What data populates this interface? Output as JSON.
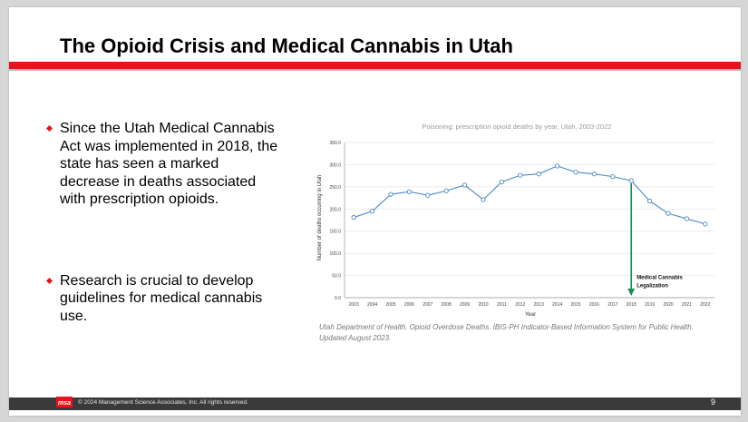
{
  "slide": {
    "title": "The Opioid Crisis and Medical Cannabis in Utah",
    "bullets": [
      "Since the Utah Medical Cannabis Act was implemented in 2018, the state has seen a marked decrease in deaths associated with prescription opioids.",
      "Research is crucial to develop guidelines for medical cannabis use."
    ],
    "caption": "Utah Department of Health. Opioid Overdose Deaths. IBIS-PH Indicator-Based Information System for Public Health. Updated August 2023.",
    "footer_text": "© 2024 Management Science Associates, Inc.  All rights reserved.",
    "page_number": "9",
    "logo_text": "msa",
    "colors": {
      "accent": "#e8141b",
      "line": "#4a8ac4",
      "arrow": "#1a8f4f"
    }
  },
  "chart_data": {
    "type": "line",
    "title": "Poisoning: prescription opioid deaths by year, Utah, 2003-2022",
    "xlabel": "Year",
    "ylabel": "Number of deaths occurring in Utah",
    "ylim": [
      0,
      350
    ],
    "yticks": [
      "0.0",
      "50.0",
      "100.0",
      "150.0",
      "200.0",
      "250.0",
      "300.0",
      "350.0"
    ],
    "categories": [
      "2003",
      "2004",
      "2005",
      "2006",
      "2007",
      "2008",
      "2009",
      "2010",
      "2011",
      "2012",
      "2013",
      "2014",
      "2015",
      "2016",
      "2017",
      "2018",
      "2019",
      "2020",
      "2021",
      "2022"
    ],
    "values": [
      181,
      195,
      233,
      239,
      231,
      241,
      254,
      221,
      261,
      276,
      279,
      297,
      283,
      279,
      273,
      264,
      218,
      190,
      178,
      166
    ],
    "grid": true,
    "annotation": {
      "text_line1": "Medical Cannabis",
      "text_line2": "Legalization",
      "year": "2018"
    }
  }
}
